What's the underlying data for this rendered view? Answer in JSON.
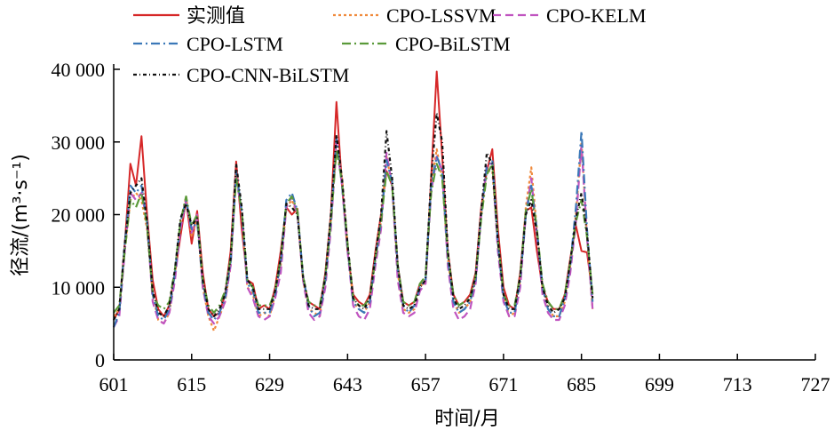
{
  "chart_data": {
    "type": "line",
    "xlabel": "时间/月",
    "ylabel": "径流/(m³·s⁻¹)",
    "xlim": [
      601,
      727
    ],
    "ylim": [
      0,
      40000
    ],
    "x_ticks": [
      601,
      615,
      629,
      643,
      657,
      671,
      685,
      699,
      713,
      727
    ],
    "x_tick_labels": [
      "601",
      "615",
      "629",
      "643",
      "657",
      "671",
      "685",
      "699",
      "713",
      "727"
    ],
    "y_ticks": [
      0,
      10000,
      20000,
      30000,
      40000
    ],
    "y_tick_labels": [
      "0",
      "10 000",
      "20 000",
      "30 000",
      "40 000"
    ],
    "grid": false,
    "legend_placement": "top-left",
    "colors": {
      "observed": "#d62728",
      "lssvm": "#f08a3c",
      "kelm": "#c054c0",
      "lstm": "#3b78b8",
      "bilstm": "#5a9a3a",
      "cnn_bilstm": "#111111"
    },
    "x_start": 601,
    "series": [
      {
        "name": "实测值",
        "key": "observed",
        "dash": "",
        "values": [
          5500,
          7000,
          16000,
          27000,
          24000,
          30800,
          20000,
          11000,
          7000,
          6000,
          7500,
          12000,
          17000,
          22000,
          16000,
          20500,
          12000,
          7000,
          6000,
          6500,
          9000,
          15000,
          27300,
          18000,
          11000,
          10500,
          7000,
          7500,
          7000,
          10000,
          15000,
          21000,
          20000,
          20800,
          11000,
          8000,
          7500,
          7000,
          12000,
          20000,
          35500,
          24000,
          15000,
          9000,
          8000,
          7500,
          9000,
          15000,
          20000,
          26000,
          24000,
          13000,
          8000,
          7500,
          8000,
          10500,
          10500,
          25000,
          39700,
          28000,
          15000,
          9000,
          7500,
          8000,
          9000,
          12000,
          21000,
          26000,
          29000,
          18000,
          10000,
          7500,
          7000,
          12000,
          20500,
          21000,
          15000,
          10000,
          8000,
          7000,
          7000,
          9000,
          14000,
          18500,
          15000,
          14800,
          9000
        ]
      },
      {
        "name": "CPO-LSSVM",
        "key": "lssvm",
        "dash": "3,3",
        "values": [
          6000,
          7000,
          15000,
          22000,
          23000,
          22000,
          18000,
          9000,
          5500,
          5000,
          6500,
          12000,
          19000,
          22500,
          17000,
          19500,
          10000,
          6000,
          4000,
          6000,
          8000,
          13000,
          26000,
          20000,
          10000,
          9000,
          6000,
          6500,
          6000,
          9000,
          13000,
          21000,
          22000,
          20000,
          11000,
          7000,
          6500,
          6000,
          11000,
          19000,
          29000,
          25000,
          16000,
          8000,
          7000,
          6500,
          8000,
          14000,
          19000,
          28000,
          24000,
          12000,
          7000,
          6500,
          7000,
          10000,
          11000,
          24000,
          29000,
          25000,
          14000,
          8000,
          6500,
          7000,
          8000,
          11000,
          20000,
          26000,
          26000,
          16000,
          9000,
          6000,
          6500,
          11000,
          21000,
          26500,
          18000,
          10000,
          7000,
          6000,
          6000,
          8000,
          13000,
          20000,
          30000,
          17000,
          7000
        ]
      },
      {
        "name": "CPO-KELM",
        "key": "kelm",
        "dash": "9,5",
        "values": [
          4500,
          6000,
          15000,
          23000,
          22000,
          23000,
          19000,
          8000,
          5500,
          5000,
          6500,
          11000,
          18000,
          22000,
          17500,
          20000,
          10000,
          6000,
          5000,
          6000,
          8000,
          13000,
          25500,
          20000,
          10000,
          8500,
          6000,
          5500,
          6000,
          8500,
          12000,
          21000,
          22500,
          20000,
          11000,
          6500,
          5500,
          6000,
          10000,
          18000,
          30000,
          24000,
          15000,
          7500,
          6000,
          5500,
          7000,
          13000,
          18000,
          28500,
          24000,
          11000,
          6500,
          6000,
          6500,
          9500,
          10500,
          23000,
          28000,
          26000,
          13000,
          7000,
          5500,
          6000,
          7000,
          10500,
          20000,
          27000,
          27000,
          15000,
          8000,
          6000,
          6000,
          10000,
          20000,
          25000,
          17000,
          9000,
          6500,
          5500,
          5500,
          7500,
          12000,
          19000,
          29500,
          17000,
          7000
        ]
      },
      {
        "name": "CPO-LSTM",
        "key": "lstm",
        "dash": "10,4,2,4",
        "values": [
          4500,
          6500,
          16000,
          24000,
          23000,
          24000,
          19000,
          9000,
          6000,
          5500,
          7000,
          12000,
          19000,
          22000,
          18000,
          19000,
          10500,
          6500,
          5500,
          6500,
          8500,
          13500,
          26000,
          20500,
          10500,
          9500,
          6500,
          6500,
          6500,
          9000,
          13500,
          22000,
          23000,
          20500,
          11500,
          7500,
          6000,
          6500,
          11000,
          19000,
          30500,
          24000,
          15500,
          8000,
          7000,
          6500,
          8000,
          14000,
          19000,
          27500,
          24500,
          12500,
          7500,
          6500,
          7500,
          10000,
          11000,
          24000,
          28000,
          26000,
          14000,
          8000,
          6500,
          7000,
          8000,
          11000,
          20000,
          26500,
          27500,
          16000,
          8500,
          6500,
          6500,
          11000,
          20000,
          24000,
          18000,
          10000,
          7000,
          6000,
          6000,
          8500,
          13000,
          21000,
          31500,
          18000,
          8000
        ]
      },
      {
        "name": "CPO-BiLSTM",
        "key": "bilstm",
        "dash": "10,4,2,4",
        "values": [
          6500,
          7500,
          15000,
          22000,
          21000,
          23000,
          18500,
          9000,
          7500,
          7000,
          8000,
          12500,
          19000,
          22500,
          18500,
          20000,
          11000,
          7500,
          6500,
          7500,
          9500,
          14000,
          25000,
          20500,
          11000,
          10000,
          7500,
          7500,
          7500,
          9500,
          14000,
          21500,
          22500,
          20500,
          11500,
          8000,
          7500,
          7500,
          11500,
          19000,
          29000,
          24500,
          16000,
          8500,
          7500,
          7500,
          8500,
          14000,
          19000,
          26000,
          24000,
          13000,
          8000,
          7500,
          8000,
          10500,
          11500,
          23000,
          27000,
          25000,
          14500,
          9000,
          7500,
          8000,
          8500,
          11500,
          19500,
          25500,
          27000,
          16500,
          9000,
          7500,
          7500,
          11500,
          20500,
          23500,
          18000,
          10500,
          8000,
          7000,
          7000,
          9000,
          13500,
          19000,
          22000,
          17000,
          9000
        ]
      },
      {
        "name": "CPO-CNN-BiLSTM",
        "key": "cnn_bilstm",
        "dash": "4,3,1,3",
        "values": [
          5500,
          7000,
          16000,
          23000,
          24000,
          25000,
          19000,
          9500,
          6500,
          6000,
          7500,
          12500,
          19500,
          21500,
          18500,
          19500,
          11000,
          7000,
          6000,
          7000,
          9000,
          14000,
          27000,
          21000,
          11000,
          10000,
          7000,
          7000,
          7000,
          9500,
          14000,
          21500,
          21000,
          20000,
          11500,
          7500,
          7000,
          7000,
          11500,
          20000,
          31000,
          25000,
          16000,
          8500,
          7500,
          7000,
          8500,
          14500,
          20000,
          31500,
          25000,
          13000,
          7500,
          7000,
          7500,
          10000,
          11000,
          25000,
          34000,
          30000,
          15000,
          8500,
          7000,
          7500,
          8500,
          11500,
          20500,
          28500,
          27000,
          16500,
          9000,
          7000,
          7000,
          11500,
          20000,
          22000,
          17500,
          10000,
          7500,
          6500,
          7000,
          8500,
          13500,
          19500,
          23000,
          17500,
          8500
        ]
      }
    ]
  }
}
